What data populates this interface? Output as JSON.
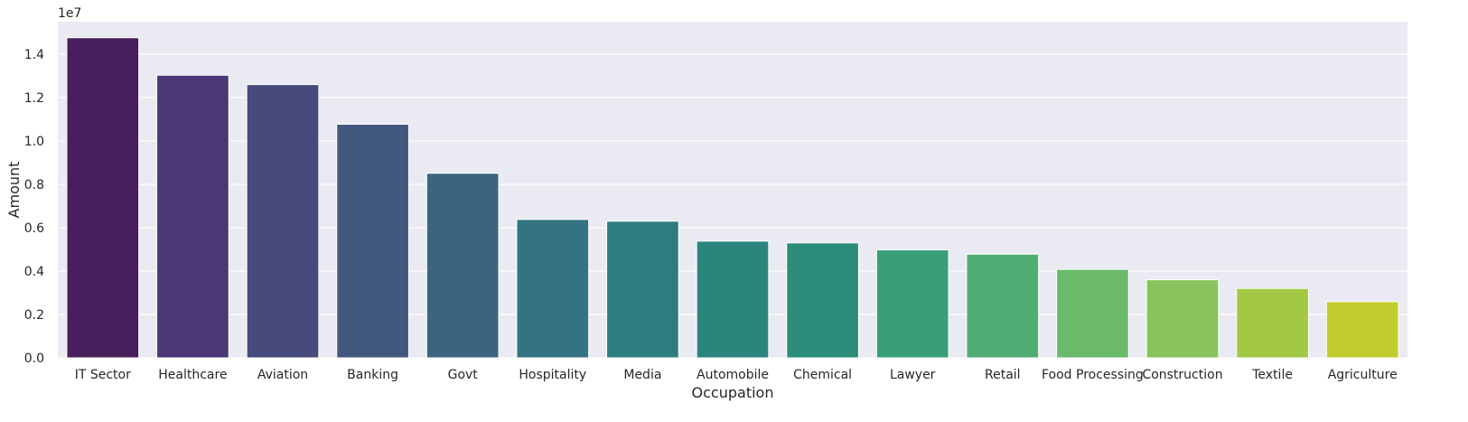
{
  "chart_data": {
    "type": "bar",
    "title": "",
    "xlabel": "Occupation",
    "ylabel": "Amount",
    "y_offset_label": "1e7",
    "y_scale": 10000000,
    "ylim": [
      0,
      15500000
    ],
    "yticks": [
      0,
      2000000,
      4000000,
      6000000,
      8000000,
      10000000,
      12000000,
      14000000
    ],
    "ytick_labels": [
      "0.0",
      "0.2",
      "0.4",
      "0.6",
      "0.8",
      "1.0",
      "1.2",
      "1.4"
    ],
    "grid": true,
    "categories": [
      "IT Sector",
      "Healthcare",
      "Aviation",
      "Banking",
      "Govt",
      "Hospitality",
      "Media",
      "Automobile",
      "Chemical",
      "Lawyer",
      "Retail",
      "Food Processing",
      "Construction",
      "Textile",
      "Agriculture"
    ],
    "values": [
      14760000,
      13030000,
      12600000,
      10770000,
      8510000,
      6380000,
      6300000,
      5380000,
      5300000,
      4980000,
      4780000,
      4080000,
      3600000,
      3200000,
      2590000
    ],
    "colors": [
      "#481f5c",
      "#4a3776",
      "#474a7d",
      "#43587f",
      "#3c6481",
      "#337382",
      "#2f7c80",
      "#2c857d",
      "#2d8d7b",
      "#3a9f79",
      "#4fad74",
      "#6aba6a",
      "#87c35a",
      "#a3c944",
      "#c2cd2d"
    ],
    "background_color": "#eaeaf2",
    "grid_color": "#ffffff"
  }
}
